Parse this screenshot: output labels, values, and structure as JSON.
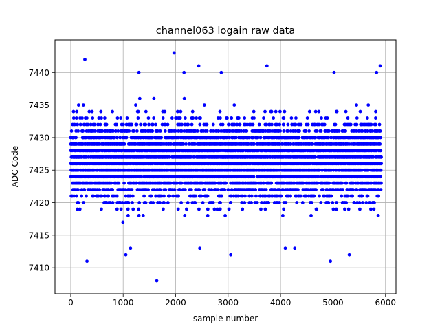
{
  "chart_data": {
    "type": "scatter",
    "title": "channel063 logain raw data",
    "xlabel": "sample number",
    "ylabel": "ADC Code",
    "xlim": [
      -300,
      6200
    ],
    "ylim": [
      7406,
      7445
    ],
    "xticks": [
      0,
      1000,
      2000,
      3000,
      4000,
      5000,
      6000
    ],
    "yticks": [
      7410,
      7415,
      7420,
      7425,
      7430,
      7435,
      7440
    ],
    "xtick_labels": [
      "0",
      "1000",
      "2000",
      "3000",
      "4000",
      "5000",
      "6000"
    ],
    "ytick_labels": [
      "7410",
      "7415",
      "7420",
      "7425",
      "7430",
      "7435",
      "7440"
    ],
    "grid": true,
    "marker_color": "#0000ff",
    "series": [
      {
        "x_range": [
          0,
          5920
        ],
        "n_samples": 5920,
        "dense_y_range": [
          7418,
          7433
        ],
        "sparse_y_range": [
          7412,
          7440
        ],
        "outliers": [
          {
            "x": 270,
            "y": 7442
          },
          {
            "x": 310,
            "y": 7411
          },
          {
            "x": 1050,
            "y": 7412
          },
          {
            "x": 1640,
            "y": 7408
          },
          {
            "x": 1970,
            "y": 7443
          },
          {
            "x": 2440,
            "y": 7441
          },
          {
            "x": 3050,
            "y": 7412
          },
          {
            "x": 3740,
            "y": 7441
          },
          {
            "x": 4950,
            "y": 7411
          },
          {
            "x": 5310,
            "y": 7412
          },
          {
            "x": 5900,
            "y": 7441
          },
          {
            "x": 1300,
            "y": 7440
          },
          {
            "x": 2160,
            "y": 7440
          },
          {
            "x": 2870,
            "y": 7440
          },
          {
            "x": 5020,
            "y": 7440
          },
          {
            "x": 5830,
            "y": 7440
          },
          {
            "x": 4090,
            "y": 7413
          },
          {
            "x": 4270,
            "y": 7413
          },
          {
            "x": 1140,
            "y": 7413
          },
          {
            "x": 2460,
            "y": 7413
          }
        ]
      }
    ]
  }
}
